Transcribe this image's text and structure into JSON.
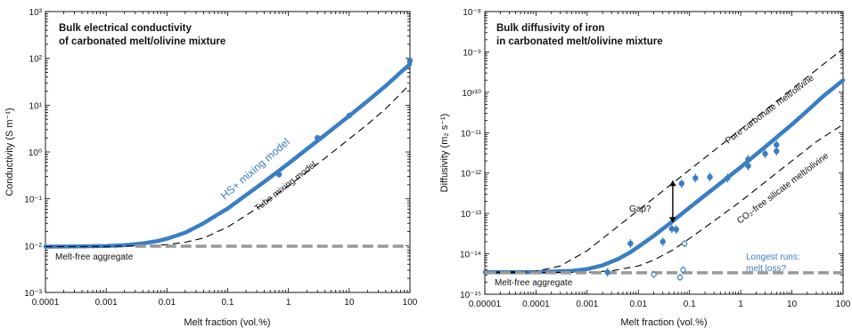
{
  "chart_data": [
    {
      "type": "line",
      "title": "Bulk electrical conductivity",
      "subtitle": "of carbonated melt/olivine mixture",
      "xlabel": "Melt fraction (vol.%)",
      "ylabel": "Conductivity (S m⁻¹)",
      "xscale": "log",
      "yscale": "log",
      "xlim": [
        0.0001,
        100
      ],
      "ylim": [
        0.001,
        1000
      ],
      "x_ticks": [
        0.0001,
        0.001,
        0.01,
        0.1,
        1,
        10,
        100
      ],
      "x_tick_labels": [
        "0.0001",
        "0.001",
        "0.01",
        "0.1",
        "1",
        "10",
        "100"
      ],
      "y_ticks": [
        0.001,
        0.01,
        0.1,
        1,
        10,
        100,
        1000
      ],
      "y_tick_labels": [
        "10⁻³",
        "10⁻²",
        "10⁻¹",
        "10⁰",
        "10¹",
        "10²",
        "10³"
      ],
      "series": [
        {
          "name": "HS+ mixing model",
          "style": "thick-solid",
          "color": "#3a7ec2",
          "x": [
            0.0001,
            0.0003,
            0.001,
            0.002,
            0.004,
            0.007,
            0.01,
            0.02,
            0.04,
            0.07,
            0.1,
            0.2,
            0.4,
            0.7,
            1,
            2,
            4,
            7,
            10,
            20,
            40,
            70,
            100
          ],
          "y": [
            0.0095,
            0.0096,
            0.0098,
            0.0102,
            0.0111,
            0.0125,
            0.014,
            0.019,
            0.03,
            0.047,
            0.062,
            0.12,
            0.23,
            0.4,
            0.57,
            1.15,
            2.3,
            4.1,
            5.9,
            12.2,
            26,
            50,
            75
          ]
        },
        {
          "name": "Tube mixing model",
          "style": "dashed",
          "color": "#000000",
          "x": [
            0.0001,
            0.001,
            0.004,
            0.01,
            0.02,
            0.04,
            0.1,
            0.2,
            0.4,
            1,
            2,
            4,
            10,
            20,
            40,
            100
          ],
          "y": [
            0.0095,
            0.0096,
            0.0099,
            0.0105,
            0.0118,
            0.0145,
            0.025,
            0.044,
            0.08,
            0.19,
            0.37,
            0.74,
            1.9,
            3.9,
            8.5,
            28
          ]
        },
        {
          "name": "Melt-free aggregate",
          "style": "gray-dashed",
          "color": "#999999",
          "x": [
            0.003,
            100
          ],
          "y": [
            0.0097,
            0.0097
          ]
        },
        {
          "name": "measurements",
          "style": "points",
          "color": "#3a7ec2",
          "x": [
            0.7,
            3,
            10,
            100
          ],
          "y": [
            0.33,
            2.0,
            6.0,
            90
          ]
        }
      ],
      "annotations": {
        "model_hs": "HS+ mixing model",
        "model_tube": "Tube mixing model",
        "baseline": "Melt-free aggregate"
      }
    },
    {
      "type": "scatter",
      "title": "Bulk diffusivity of iron",
      "subtitle": "in carbonated melt/olivine mixture",
      "xlabel": "Melt fraction (vol.%)",
      "ylabel": "Diffusivity (m₂ s⁻¹)",
      "xscale": "log",
      "yscale": "log",
      "xlim": [
        1e-05,
        100
      ],
      "ylim": [
        1e-15,
        1e-08
      ],
      "x_ticks": [
        1e-05,
        0.0001,
        0.001,
        0.01,
        0.1,
        1,
        10,
        100
      ],
      "x_tick_labels": [
        "0.00001",
        "0.0001",
        "0.001",
        "0.01",
        "0.1",
        "1",
        "10",
        "100"
      ],
      "y_ticks": [
        1e-15,
        1e-14,
        1e-13,
        1e-12,
        1e-11,
        1e-10,
        1e-09,
        1e-08
      ],
      "y_tick_labels": [
        "10⁻¹⁵",
        "10⁻¹⁴",
        "10⁻¹³",
        "10⁻¹²",
        "10⁻¹¹",
        "10ᵛ¹⁰",
        "10⁻⁹",
        "10⁻⁸"
      ],
      "series": [
        {
          "name": "HS+ mixing model",
          "style": "thick-solid",
          "color": "#3a7ec2",
          "x": [
            1e-05,
            0.0001,
            0.0005,
            0.001,
            0.002,
            0.004,
            0.007,
            0.01,
            0.02,
            0.04,
            0.07,
            0.1,
            0.2,
            0.4,
            0.7,
            1,
            2,
            4,
            7,
            10,
            20,
            40,
            100
          ],
          "y": [
            3.5e-15,
            3.5e-15,
            3.8e-15,
            4.2e-15,
            5.2e-15,
            7.4e-15,
            1.1e-14,
            1.5e-14,
            2.8e-14,
            5.5e-14,
            9.7e-14,
            1.4e-13,
            2.8e-13,
            5.6e-13,
            9.8e-13,
            1.4e-12,
            2.9e-12,
            6e-12,
            1.1e-11,
            1.6e-11,
            3.5e-11,
            7.8e-11,
            2e-10
          ]
        },
        {
          "name": "Pure carbonate melt/olivine",
          "style": "dashed",
          "color": "#000000",
          "x": [
            1e-05,
            0.0001,
            0.0003,
            0.001,
            0.002,
            0.005,
            0.01,
            0.02,
            0.05,
            0.1,
            0.3,
            1,
            3,
            10,
            30,
            100
          ],
          "y": [
            3.5e-15,
            3.7e-15,
            5e-15,
            1.2e-14,
            2.4e-14,
            6e-14,
            1.2e-13,
            2.4e-13,
            6e-13,
            1.2e-12,
            3.6e-12,
            1.2e-11,
            3.6e-11,
            1.2e-10,
            3.6e-10,
            1.2e-09
          ]
        },
        {
          "name": "CO₂-free silicate melt/olivine",
          "style": "dashed",
          "color": "#000000",
          "x": [
            1e-05,
            0.001,
            0.003,
            0.01,
            0.02,
            0.05,
            0.1,
            0.3,
            1,
            3,
            10,
            30,
            100
          ],
          "y": [
            3.4e-15,
            3.5e-15,
            3.8e-15,
            5e-15,
            7e-15,
            1.3e-14,
            2.4e-14,
            6.5e-14,
            2e-13,
            6e-13,
            2e-12,
            6e-12,
            1.6e-11
          ]
        },
        {
          "name": "Melt-free aggregate",
          "style": "gray-dashed",
          "color": "#999999",
          "x": [
            1e-05,
            100
          ],
          "y": [
            3.4e-15,
            3.4e-15
          ]
        },
        {
          "name": "measurements",
          "style": "points",
          "color": "#3a7ec2",
          "x": [
            0.0025,
            0.007,
            0.03,
            0.045,
            0.055,
            0.07,
            0.13,
            0.25,
            0.55,
            1.4,
            1.4,
            3,
            5,
            5
          ],
          "y": [
            3.5e-15,
            1.8e-14,
            2e-14,
            4.2e-14,
            4e-14,
            5.5e-13,
            7.5e-13,
            8e-13,
            7.5e-13,
            2.2e-12,
            1.5e-12,
            3e-12,
            5e-12,
            3.5e-12
          ]
        },
        {
          "name": "open points",
          "style": "open-points",
          "color": "#3a7ec2",
          "x": [
            0.02,
            0.065,
            0.075,
            0.08
          ],
          "y": [
            3.1e-15,
            2.6e-15,
            4e-15,
            1.8e-14
          ]
        }
      ],
      "annotations": {
        "gap": "Gap?",
        "pure": "Pure carbonate melt/olivine",
        "co2free": "CO₂-free silicate melt/olivine",
        "longest_line1": "Longest runs:",
        "longest_line2": "melt loss?",
        "baseline": "Melt-free aggregate"
      }
    }
  ]
}
